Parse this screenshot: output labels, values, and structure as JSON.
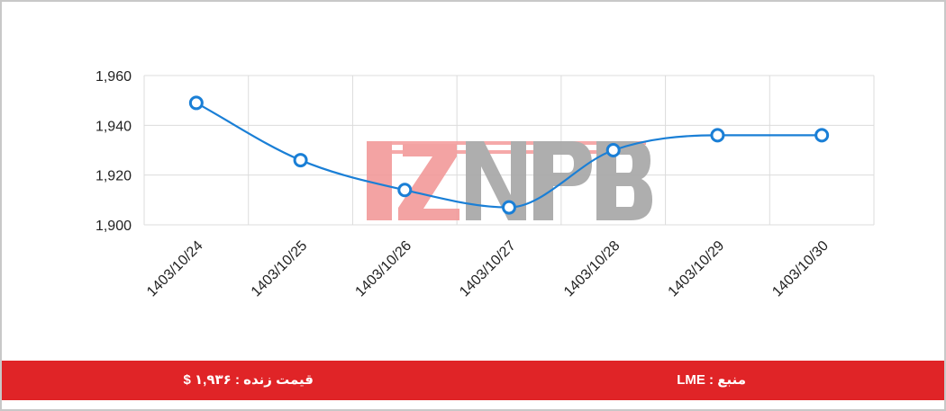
{
  "chart_data": {
    "type": "line",
    "title": "",
    "xlabel": "",
    "ylabel": "",
    "categories": [
      "1403/10/24",
      "1403/10/25",
      "1403/10/26",
      "1403/10/27",
      "1403/10/28",
      "1403/10/29",
      "1403/10/30"
    ],
    "series": [
      {
        "values": [
          1949,
          1926,
          1914,
          1907,
          1930,
          1936,
          1936
        ]
      }
    ],
    "ylim": [
      1900,
      1960
    ],
    "yticks": [
      "1,960",
      "1,940",
      "1,920",
      "1,900"
    ],
    "grid": true,
    "line_color": "#1a7fd6",
    "smooth": true
  },
  "watermark": {
    "text": "IZNPB",
    "colors": [
      "#f08080",
      "#9a9a9a"
    ]
  },
  "footer": {
    "background": "#e02427",
    "source": "منبع : LME",
    "price": "قیمت زنده : ۱,۹۳۶ $"
  }
}
